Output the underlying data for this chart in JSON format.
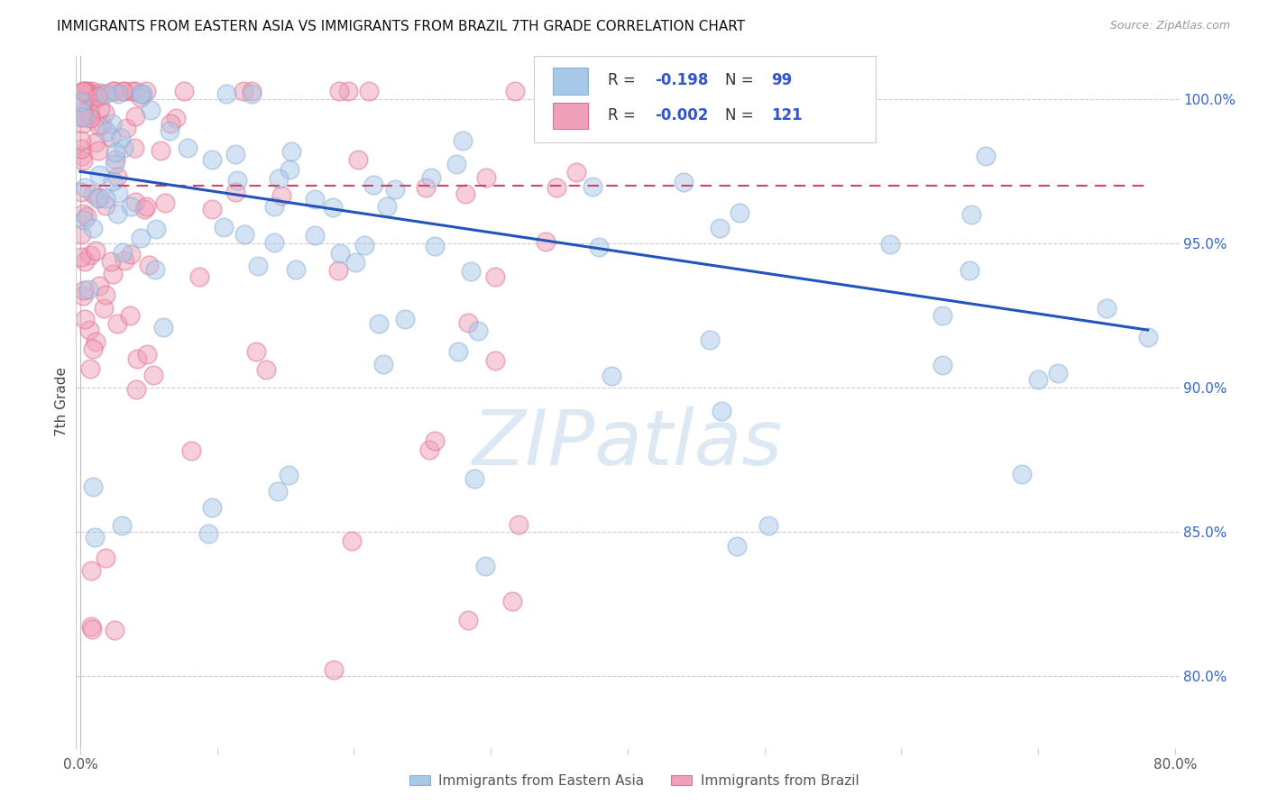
{
  "title": "IMMIGRANTS FROM EASTERN ASIA VS IMMIGRANTS FROM BRAZIL 7TH GRADE CORRELATION CHART",
  "source": "Source: ZipAtlas.com",
  "ylabel": "7th Grade",
  "legend_label_blue": "Immigrants from Eastern Asia",
  "legend_label_pink": "Immigrants from Brazil",
  "R_blue": -0.198,
  "N_blue": 99,
  "R_pink": -0.002,
  "N_pink": 121,
  "x_min": 0.0,
  "x_max": 0.8,
  "y_min": 0.775,
  "y_max": 1.015,
  "yticks": [
    0.8,
    0.85,
    0.9,
    0.95,
    1.0
  ],
  "ytick_labels": [
    "80.0%",
    "85.0%",
    "90.0%",
    "95.0%",
    "100.0%"
  ],
  "xticks": [
    0.0,
    0.1,
    0.2,
    0.3,
    0.4,
    0.5,
    0.6,
    0.7,
    0.8
  ],
  "xtick_labels": [
    "0.0%",
    "",
    "",
    "",
    "",
    "",
    "",
    "",
    "80.0%"
  ],
  "color_blue": "#a8c8e8",
  "color_pink": "#f0a0b8",
  "edge_blue": "#8ab0d8",
  "edge_pink": "#e07090",
  "trendline_blue": "#2255bb",
  "trendline_pink": "#cc4466",
  "watermark": "ZIPatlas",
  "watermark_color": "#dde8f5",
  "blue_trendline_x0": 0.0,
  "blue_trendline_x1": 0.78,
  "blue_trendline_y0": 0.975,
  "blue_trendline_y1": 0.92,
  "pink_trendline_x0": 0.0,
  "pink_trendline_x1": 0.78,
  "pink_trendline_y0": 0.97,
  "pink_trendline_y1": 0.97
}
